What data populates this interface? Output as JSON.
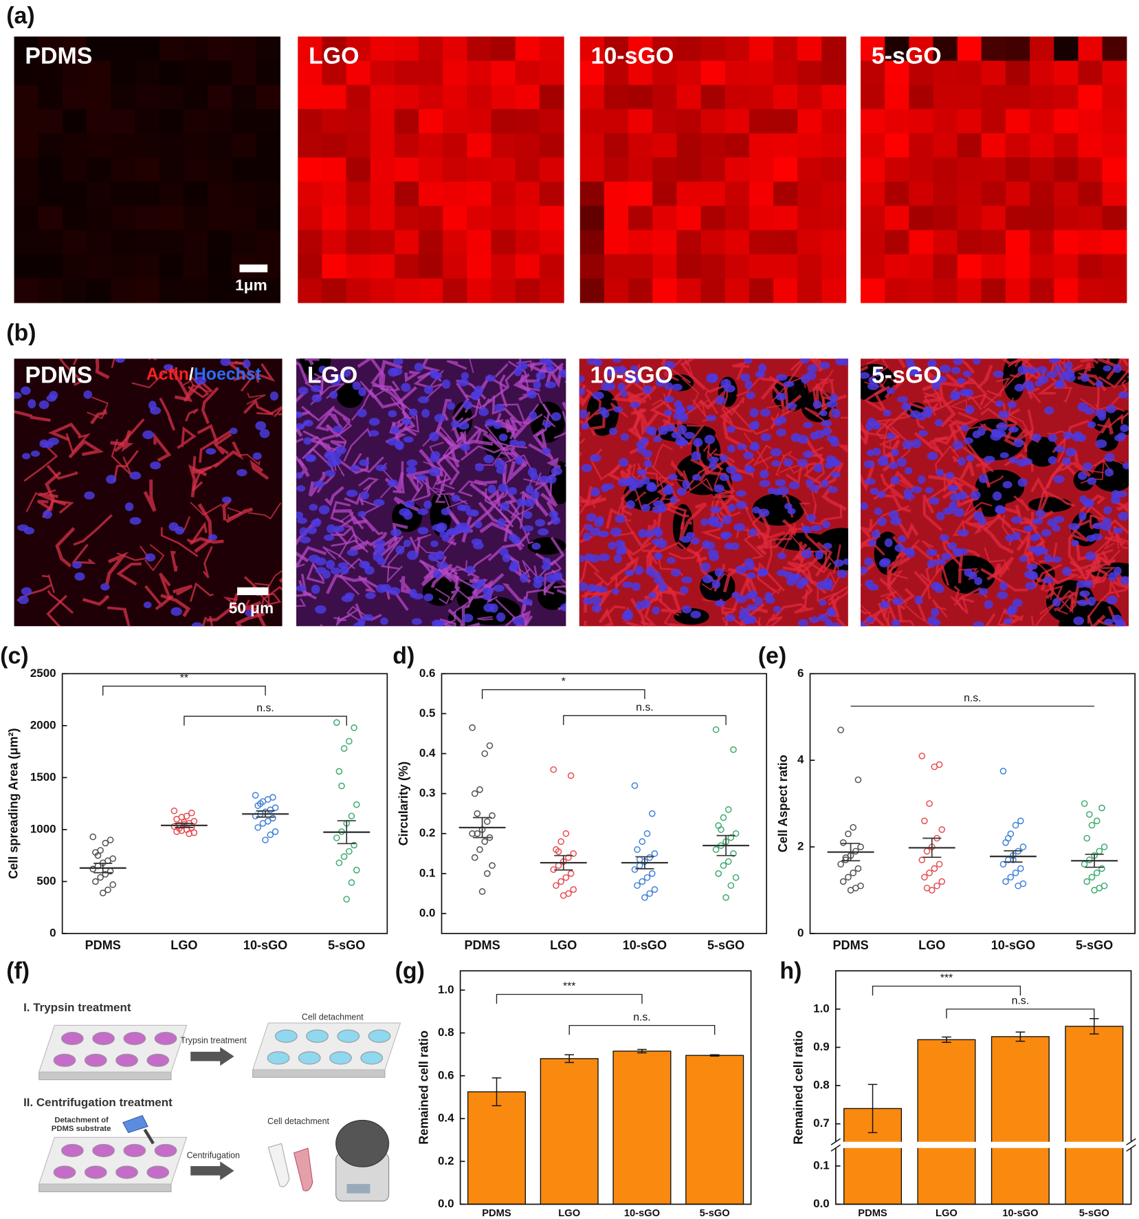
{
  "image_panels": {
    "a": {
      "panel_label": "(a)",
      "tiles": [
        "PDMS",
        "LGO",
        "10-sGO",
        "5-sGO"
      ],
      "scale_bar": "1μm"
    },
    "b": {
      "panel_label": "(b)",
      "tiles": [
        "PDMS",
        "LGO",
        "10-sGO",
        "5-sGO"
      ],
      "stain": [
        "Actin",
        "/",
        "Hoechst"
      ],
      "scale_bar": "50 μm"
    }
  },
  "schematic": {
    "panel_label": "(f)",
    "step1": "I. Trypsin treatment",
    "step1_arrow": "Trypsin treatment",
    "step1_result": "Cell detachment",
    "step2": "II. Centrifugation treatment",
    "step2_note": [
      "Detachment of",
      "PDMS substrate"
    ],
    "step2_arrow": "Centrifugation",
    "step2_result": "Cell detachment"
  },
  "chart_data": [
    {
      "type": "dot",
      "panel_label": "(c)",
      "ylabel": "Cell spreading Area (μm²)",
      "categories": [
        "PDMS",
        "LGO",
        "10-sGO",
        "5-sGO"
      ],
      "colors": [
        "#4d4d4d",
        "#e8474c",
        "#3d7fd9",
        "#39a96b"
      ],
      "groups": [
        [
          930,
          900,
          870,
          800,
          780,
          720,
          700,
          680,
          650,
          620,
          600,
          570,
          540,
          500,
          470,
          420,
          390,
          750
        ],
        [
          1180,
          1160,
          1130,
          1120,
          1100,
          1080,
          1060,
          1050,
          1040,
          1030,
          1020,
          1000,
          990,
          980,
          970,
          960,
          1070,
          1010
        ],
        [
          1330,
          1310,
          1290,
          1270,
          1230,
          1210,
          1190,
          1170,
          1150,
          1130,
          1110,
          1080,
          1060,
          1020,
          980,
          950,
          900,
          1250
        ],
        [
          2030,
          1980,
          1850,
          1780,
          1560,
          1240,
          1130,
          1060,
          980,
          920,
          850,
          790,
          740,
          680,
          610,
          490,
          330,
          1420
        ]
      ],
      "means": [
        630,
        1040,
        1150,
        975
      ],
      "sem": [
        45,
        20,
        30,
        110
      ],
      "ylim": [
        0,
        2500
      ],
      "yticks": [
        0,
        500,
        1000,
        1500,
        2000,
        2500
      ],
      "brackets": [
        {
          "label": "**",
          "between": [
            0,
            2
          ],
          "y": 2380,
          "legs": true
        },
        {
          "label": "n.s.",
          "between": [
            1,
            3
          ],
          "y": 2090,
          "legs": true
        }
      ]
    },
    {
      "type": "dot",
      "panel_label": "d)",
      "ylabel": "Circularity (%)",
      "categories": [
        "PDMS",
        "LGO",
        "10-sGO",
        "5-sGO"
      ],
      "colors": [
        "#4d4d4d",
        "#e8474c",
        "#3d7fd9",
        "#39a96b"
      ],
      "groups": [
        [
          0.465,
          0.42,
          0.4,
          0.31,
          0.3,
          0.245,
          0.23,
          0.21,
          0.2,
          0.2,
          0.19,
          0.18,
          0.16,
          0.14,
          0.12,
          0.1,
          0.055,
          0.25
        ],
        [
          0.36,
          0.345,
          0.2,
          0.18,
          0.16,
          0.15,
          0.14,
          0.13,
          0.12,
          0.11,
          0.1,
          0.09,
          0.08,
          0.07,
          0.06,
          0.05,
          0.045,
          0.155
        ],
        [
          0.32,
          0.25,
          0.2,
          0.18,
          0.16,
          0.15,
          0.14,
          0.13,
          0.12,
          0.11,
          0.1,
          0.09,
          0.08,
          0.07,
          0.06,
          0.05,
          0.04,
          0.135
        ],
        [
          0.46,
          0.41,
          0.26,
          0.24,
          0.22,
          0.2,
          0.19,
          0.18,
          0.17,
          0.16,
          0.15,
          0.13,
          0.12,
          0.1,
          0.09,
          0.07,
          0.04,
          0.21
        ]
      ],
      "means": [
        0.215,
        0.127,
        0.127,
        0.17
      ],
      "sem": [
        0.025,
        0.018,
        0.015,
        0.025
      ],
      "ylim": [
        -0.05,
        0.6
      ],
      "yticks": [
        {
          "value": 0,
          "label": "0.0"
        },
        0.1,
        0.2,
        0.3,
        0.4,
        0.5,
        0.6
      ],
      "brackets": [
        {
          "label": "*",
          "between": [
            0,
            2
          ],
          "y": 0.56,
          "legs": true
        },
        {
          "label": "n.s.",
          "between": [
            1,
            3
          ],
          "y": 0.495,
          "legs": true
        }
      ]
    },
    {
      "type": "dot",
      "panel_label": "(e)",
      "ylabel": "Cell Aspect ratio",
      "categories": [
        "PDMS",
        "LGO",
        "10-sGO",
        "5-sGO"
      ],
      "colors": [
        "#4d4d4d",
        "#e8474c",
        "#3d7fd9",
        "#39a96b"
      ],
      "groups": [
        [
          4.7,
          3.55,
          2.45,
          2.3,
          2.1,
          2.0,
          1.9,
          1.8,
          1.7,
          1.6,
          1.5,
          1.4,
          1.3,
          1.2,
          1.1,
          1.05,
          1.0,
          1.75
        ],
        [
          4.1,
          3.9,
          3.85,
          3.0,
          2.6,
          2.4,
          2.2,
          2.0,
          1.9,
          1.7,
          1.6,
          1.5,
          1.4,
          1.3,
          1.2,
          1.1,
          1.0,
          1.05
        ],
        [
          3.75,
          2.6,
          2.5,
          2.3,
          2.1,
          2.0,
          1.9,
          1.8,
          1.7,
          1.6,
          1.5,
          1.4,
          1.3,
          1.2,
          1.15,
          1.1,
          1.7,
          2.2
        ],
        [
          3.0,
          2.9,
          2.6,
          2.5,
          2.2,
          2.0,
          1.9,
          1.8,
          1.7,
          1.6,
          1.5,
          1.4,
          1.3,
          1.2,
          1.1,
          1.05,
          1.0,
          2.75
        ]
      ],
      "means": [
        1.88,
        1.98,
        1.78,
        1.68
      ],
      "sem": [
        0.2,
        0.22,
        0.13,
        0.15
      ],
      "ylim": [
        0,
        6
      ],
      "yticks": [
        0,
        2,
        4,
        6
      ],
      "brackets": [
        {
          "label": "n.s.",
          "between": [
            0,
            3
          ],
          "y": 5.25,
          "legs": false
        }
      ]
    },
    {
      "type": "bar",
      "panel_label": "(g)",
      "ylabel": "Remained cell ratio",
      "categories": [
        "PDMS",
        "LGO",
        "10-sGO",
        "5-sGO"
      ],
      "values": [
        0.525,
        0.68,
        0.715,
        0.695
      ],
      "errors": [
        0.065,
        0.018,
        0.008,
        0.003
      ],
      "color": "#f98a0f",
      "ylim": [
        0,
        1.09
      ],
      "yticks": [
        {
          "value": 0,
          "label": "0.0"
        },
        0.2,
        0.4,
        0.6,
        0.8,
        {
          "value": 1,
          "label": "1.0"
        }
      ],
      "brackets": [
        {
          "label": "***",
          "between": [
            0,
            2
          ],
          "y": 0.98,
          "legs": true
        },
        {
          "label": "n.s.",
          "between": [
            1,
            3
          ],
          "y": 0.835,
          "legs": true
        }
      ]
    },
    {
      "type": "bar",
      "panel_label": "h)",
      "ylabel": "Remained cell ratio",
      "categories": [
        "PDMS",
        "LGO",
        "10-sGO",
        "5-sGO"
      ],
      "values": [
        0.74,
        0.92,
        0.928,
        0.955
      ],
      "errors": [
        0.063,
        0.007,
        0.012,
        0.02
      ],
      "color": "#f98a0f",
      "ylim": [
        0,
        1.1
      ],
      "ybreak": [
        0.15,
        0.65
      ],
      "yticks": [
        {
          "value": 0,
          "label": "0.0"
        },
        0.1,
        0.7,
        0.8,
        0.9,
        {
          "value": 1,
          "label": "1.0"
        }
      ],
      "brackets": [
        {
          "label": "***",
          "between": [
            0,
            2
          ],
          "y": 1.06,
          "legs": true
        },
        {
          "label": "n.s.",
          "between": [
            1,
            3
          ],
          "y": 1.0,
          "legs": true
        }
      ]
    }
  ]
}
